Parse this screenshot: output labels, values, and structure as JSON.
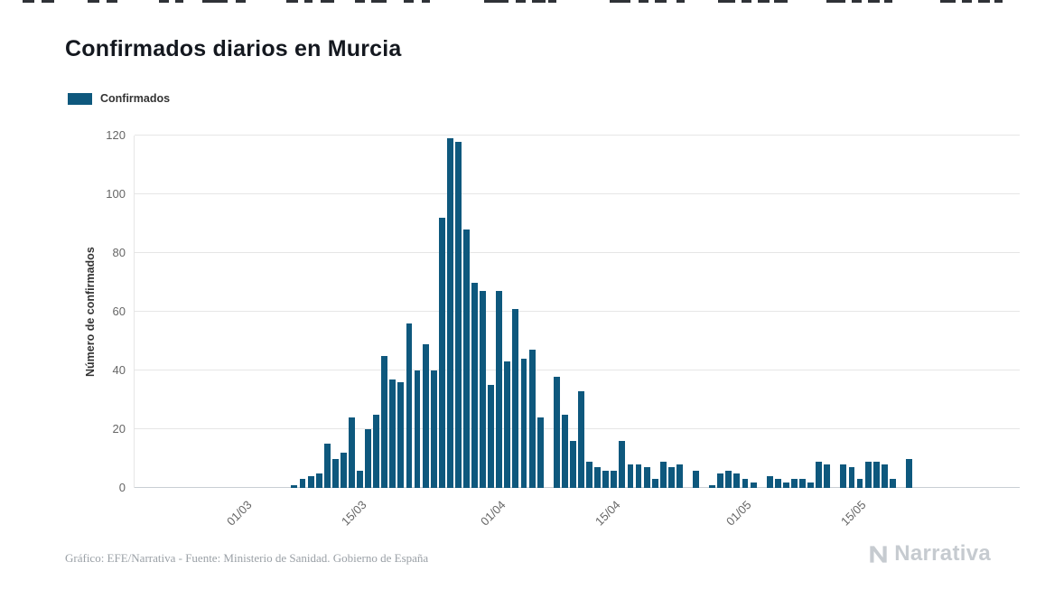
{
  "title": "Confirmados diarios en Murcia",
  "legend": {
    "label": "Confirmados"
  },
  "footer": {
    "credit": "Gráfico: EFE/Narrativa - Fuente: Ministerio de Sanidad. Gobierno de España"
  },
  "branding": {
    "logo_text": "Narrativa"
  },
  "colors": {
    "bar": "#0e587d",
    "grid": "#e6e6e6",
    "axis_line": "#c9ced4",
    "tick_text": "#666666",
    "title_text": "#14181f",
    "axis_title_text": "#333333",
    "footer_text": "#9aa0a6",
    "logo": "#c6cbd0"
  },
  "chart_data": {
    "type": "bar",
    "title": "Confirmados diarios en Murcia",
    "series_name": "Confirmados",
    "xlabel": "",
    "ylabel": "Número de confirmados",
    "ylim": [
      0,
      120
    ],
    "yticks": [
      0,
      20,
      40,
      60,
      80,
      100,
      120
    ],
    "xticks": [
      "01/03",
      "15/03",
      "01/04",
      "15/04",
      "01/05",
      "15/05"
    ],
    "grid": "horizontal",
    "legend_position": "top-left",
    "dates": [
      "17/02",
      "18/02",
      "19/02",
      "20/02",
      "21/02",
      "22/02",
      "23/02",
      "24/02",
      "25/02",
      "26/02",
      "27/02",
      "28/02",
      "29/02",
      "01/03",
      "02/03",
      "03/03",
      "04/03",
      "05/03",
      "06/03",
      "07/03",
      "08/03",
      "09/03",
      "10/03",
      "11/03",
      "12/03",
      "13/03",
      "14/03",
      "15/03",
      "16/03",
      "17/03",
      "18/03",
      "19/03",
      "20/03",
      "21/03",
      "22/03",
      "23/03",
      "24/03",
      "25/03",
      "26/03",
      "27/03",
      "28/03",
      "29/03",
      "30/03",
      "31/03",
      "01/04",
      "02/04",
      "03/04",
      "04/04",
      "05/04",
      "06/04",
      "07/04",
      "08/04",
      "09/04",
      "10/04",
      "11/04",
      "12/04",
      "13/04",
      "14/04",
      "15/04",
      "16/04",
      "17/04",
      "18/04",
      "19/04",
      "20/04",
      "21/04",
      "22/04",
      "23/04",
      "24/04",
      "25/04",
      "26/04",
      "27/04",
      "28/04",
      "29/04",
      "30/04",
      "01/05",
      "02/05",
      "03/05",
      "04/05",
      "05/05",
      "06/05",
      "07/05",
      "08/05",
      "09/05",
      "10/05",
      "11/05",
      "12/05",
      "13/05",
      "14/05",
      "15/05",
      "16/05",
      "17/05",
      "18/05",
      "19/05",
      "20/05",
      "21/05",
      "22/05",
      "23/05",
      "24/05",
      "25/05",
      "26/05",
      "27/05",
      "28/05",
      "29/05",
      "30/05",
      "31/05",
      "01/06",
      "02/06",
      "03/06"
    ],
    "values": [
      0,
      0,
      0,
      0,
      0,
      0,
      0,
      0,
      0,
      0,
      0,
      0,
      0,
      0,
      0,
      0,
      0,
      0,
      0,
      1,
      3,
      4,
      5,
      15,
      10,
      12,
      24,
      6,
      20,
      25,
      45,
      37,
      36,
      56,
      40,
      49,
      40,
      92,
      119,
      118,
      88,
      70,
      67,
      35,
      67,
      43,
      61,
      44,
      47,
      24,
      0,
      38,
      25,
      16,
      33,
      9,
      7,
      6,
      6,
      16,
      8,
      8,
      7,
      3,
      9,
      7,
      8,
      0,
      6,
      0,
      1,
      5,
      6,
      5,
      3,
      2,
      0,
      4,
      3,
      2,
      3,
      3,
      2,
      9,
      8,
      0,
      8,
      7,
      3,
      9,
      9,
      8,
      3,
      0,
      10,
      0,
      0,
      0,
      0,
      0,
      0,
      0,
      0,
      0,
      0,
      0,
      0,
      0
    ]
  }
}
